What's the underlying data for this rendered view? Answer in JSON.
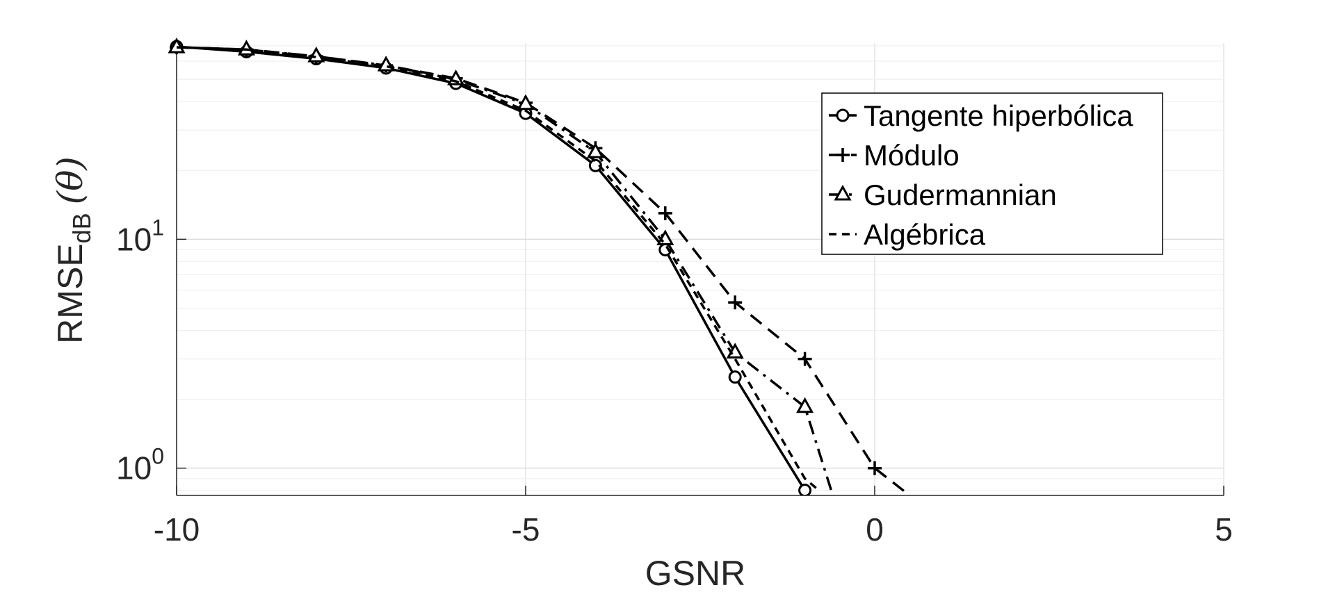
{
  "chart_data": {
    "type": "line",
    "xlabel": "GSNR",
    "ylabel": {
      "base": "RMSE",
      "subscript": "dB",
      "suffix": "(θ)"
    },
    "xlim": [
      -10,
      5
    ],
    "ylim": [
      0.76,
      72
    ],
    "yscale": "log",
    "xticks": [
      {
        "value": -10,
        "label": "-10"
      },
      {
        "value": -5,
        "label": "-5"
      },
      {
        "value": 0,
        "label": "0"
      },
      {
        "value": 5,
        "label": "5"
      }
    ],
    "yticks": [
      {
        "value": 1,
        "base": "10",
        "exp": "0"
      },
      {
        "value": 10,
        "base": "10",
        "exp": "1"
      }
    ],
    "grid": true,
    "legend_position": "top-right",
    "series": [
      {
        "name": "Tangente hiperbólica",
        "marker": "circle",
        "dash": "solid",
        "x": [
          -10,
          -9,
          -8,
          -7,
          -6,
          -5,
          -4,
          -3,
          -2,
          -1
        ],
        "y": [
          69.5,
          66,
          61.5,
          56,
          48,
          35.5,
          21,
          9,
          2.5,
          0.8
        ]
      },
      {
        "name": "Módulo",
        "marker": "plus",
        "dash": "dash",
        "x": [
          -10,
          -9,
          -8,
          -7,
          -6,
          -5,
          -4,
          -3,
          -2,
          -1,
          0,
          0.5
        ],
        "y": [
          69,
          67.5,
          63,
          57.5,
          50.5,
          39.5,
          25,
          13,
          5.3,
          3,
          1,
          0.76
        ]
      },
      {
        "name": "Gudermannian",
        "marker": "triangle",
        "dash": "dashdot",
        "x": [
          -10,
          -9,
          -8,
          -7,
          -6,
          -5,
          -4,
          -3,
          -2,
          -1,
          -0.6
        ],
        "y": [
          69,
          67.5,
          63,
          57.5,
          50,
          39,
          24,
          10,
          3.2,
          1.85,
          0.76
        ]
      },
      {
        "name": "Algébrica",
        "marker": "none",
        "dash": "shortdash",
        "x": [
          -10,
          -9,
          -8,
          -7,
          -6,
          -5,
          -4,
          -3,
          -2,
          -1,
          -0.8
        ],
        "y": [
          69,
          67.5,
          62.5,
          57,
          49,
          36.5,
          22,
          9.5,
          3,
          0.9,
          0.8
        ]
      }
    ]
  }
}
